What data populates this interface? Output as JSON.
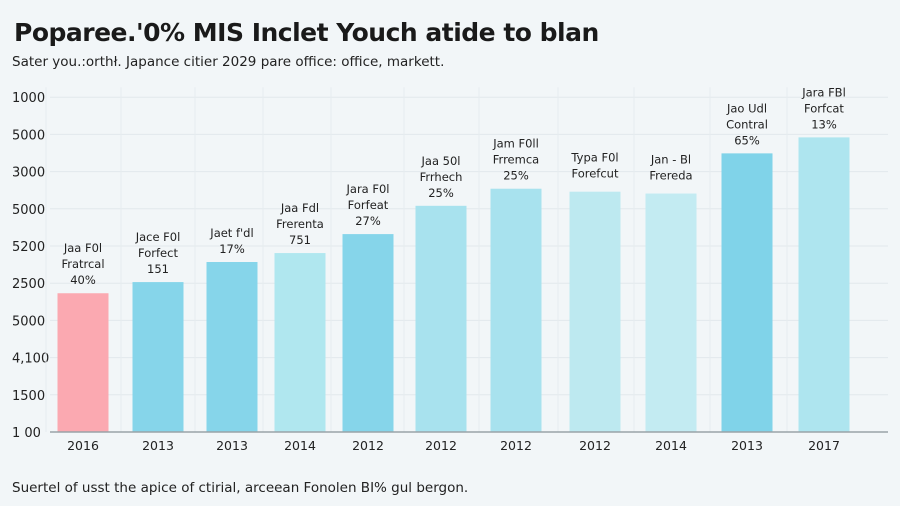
{
  "chart_data": {
    "type": "bar",
    "title": "Poparee.'0% MIS Inclet Youch atide to blan",
    "subtitle": "Sater you.:orthł. Japance citier 2029 pare office: office, markett.",
    "footer": "Suertel of usst the apice of ctirial, arceean Fonolen BI% gul bergon.",
    "ytick_labels": [
      "1 00",
      "1500",
      "4,100",
      "5000",
      "2500",
      "5200",
      "5000",
      "3000",
      "5000",
      "1000"
    ],
    "ylim": [
      0,
      9
    ],
    "y_scale_note_visible": false,
    "grid": true,
    "categories": [
      "2016",
      "2013",
      "2013",
      "2014",
      "2012",
      "2012",
      "2012",
      "2012",
      "2014",
      "2013",
      "2017"
    ],
    "values": [
      3.73,
      4.03,
      4.57,
      4.81,
      5.32,
      6.08,
      6.54,
      6.46,
      6.41,
      7.49,
      7.92
    ],
    "data_labels": [
      [
        "Jaa F0l",
        "Fratrcal",
        "40%"
      ],
      [
        "Jace F0l",
        "Forfect",
        "151"
      ],
      [
        "Jaet f'dl",
        "17%"
      ],
      [
        "Jaa Fdl",
        "Frerenta",
        "751"
      ],
      [
        "Jara F0l",
        "Forfeat",
        "27%"
      ],
      [
        "Jaa 50l",
        "Frrhech",
        "25%"
      ],
      [
        "Jam F0ll",
        "Frremca",
        "25%"
      ],
      [
        "Typa F0l",
        "Forefcut"
      ],
      [
        "Jan - Bl",
        "Frereda"
      ],
      [
        "Jao Udl",
        "Contral",
        "65%"
      ],
      [
        "Jara FBl",
        "Forfcat",
        "13%"
      ]
    ],
    "colors": [
      "#fba9b1",
      "#86d5ea",
      "#86d5ea",
      "#b0e7ef",
      "#86d5ea",
      "#a8e2ee",
      "#a8e2ee",
      "#bde9f0",
      "#c3ebf2",
      "#80d3e9",
      "#aee5ef"
    ]
  }
}
